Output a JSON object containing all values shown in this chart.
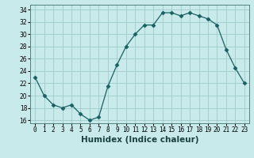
{
  "x": [
    0,
    1,
    2,
    3,
    4,
    5,
    6,
    7,
    8,
    9,
    10,
    11,
    12,
    13,
    14,
    15,
    16,
    17,
    18,
    19,
    20,
    21,
    22,
    23
  ],
  "y": [
    23,
    20,
    18.5,
    18,
    18.5,
    17,
    16,
    16.5,
    21.5,
    25,
    28,
    30,
    31.5,
    31.5,
    33.5,
    33.5,
    33,
    33.5,
    33,
    32.5,
    31.5,
    27.5,
    24.5,
    22
  ],
  "xlabel": "Humidex (Indice chaleur)",
  "xlim": [
    -0.5,
    23.5
  ],
  "ylim": [
    15.5,
    34.8
  ],
  "yticks": [
    16,
    18,
    20,
    22,
    24,
    26,
    28,
    30,
    32,
    34
  ],
  "xtick_labels": [
    "0",
    "1",
    "2",
    "3",
    "4",
    "5",
    "6",
    "7",
    "8",
    "9",
    "10",
    "11",
    "12",
    "13",
    "14",
    "15",
    "16",
    "17",
    "18",
    "19",
    "20",
    "21",
    "22",
    "23"
  ],
  "line_color": "#1a6060",
  "marker": "D",
  "marker_size": 2.5,
  "bg_color": "#c8eaea",
  "grid_color": "#a0cccc",
  "label_fontsize": 7.5,
  "tick_fontsize": 5.5
}
